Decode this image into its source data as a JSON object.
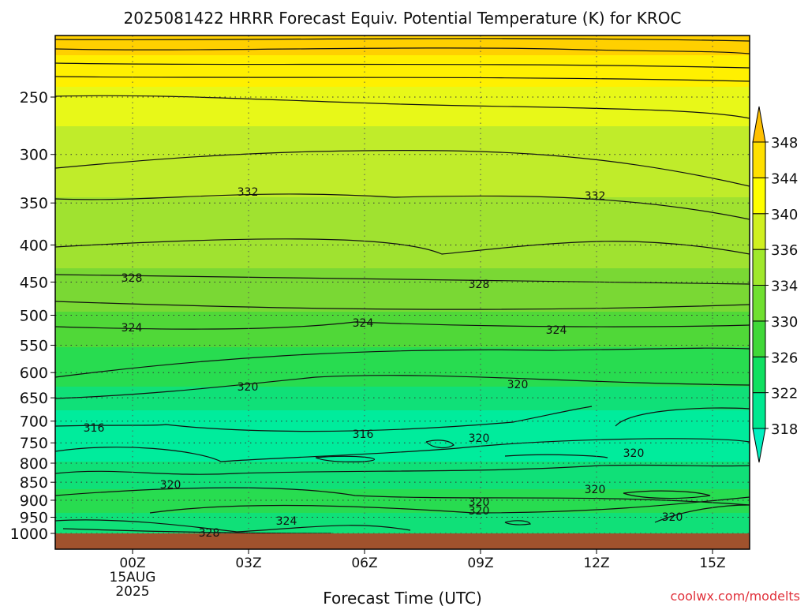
{
  "chart_data": {
    "type": "heatmap",
    "title": "2025081422 HRRR Forecast Equiv. Potential Temperature (K) for KROC",
    "xlabel": "Forecast Time (UTC)",
    "ylabel": "",
    "x_ticks": [
      {
        "label": "00Z",
        "sub1": "15AUG",
        "sub2": "2025"
      },
      {
        "label": "03Z"
      },
      {
        "label": "06Z"
      },
      {
        "label": "09Z"
      },
      {
        "label": "12Z"
      },
      {
        "label": "15Z"
      }
    ],
    "y_ticks": [
      "250",
      "300",
      "350",
      "400",
      "450",
      "500",
      "550",
      "600",
      "650",
      "700",
      "750",
      "800",
      "850",
      "900",
      "950",
      "1000"
    ],
    "colorbar": {
      "levels": [
        "318",
        "322",
        "326",
        "330",
        "334",
        "336",
        "340",
        "344",
        "348"
      ],
      "colors": [
        "#00f0c0",
        "#00e890",
        "#10e060",
        "#40d838",
        "#70e030",
        "#a0e82c",
        "#d0f020",
        "#ffff00",
        "#ffe000",
        "#ffc000"
      ]
    },
    "contour_labels": [
      "332",
      "332",
      "328",
      "328",
      "324",
      "324",
      "324",
      "320",
      "320",
      "316",
      "316",
      "320",
      "320",
      "320",
      "320",
      "320",
      "320",
      "320",
      "324",
      "328"
    ],
    "ground_color": "#a0522d"
  },
  "watermark": "coolwx.com/modelts"
}
